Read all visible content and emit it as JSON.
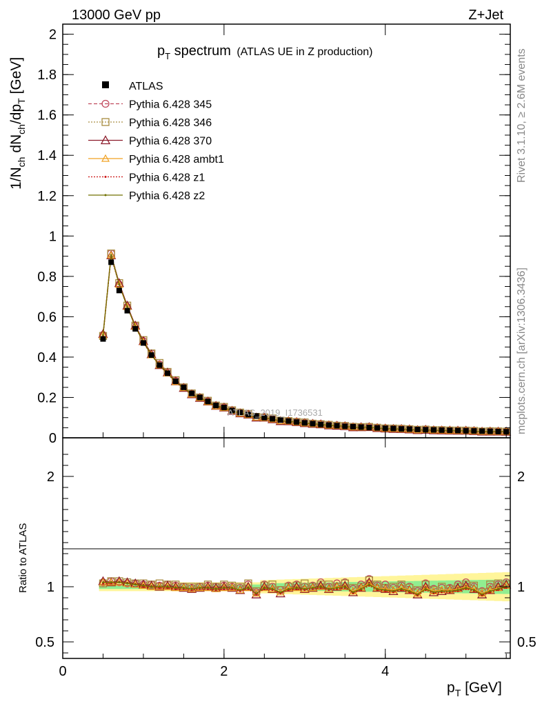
{
  "header": {
    "left": "13000 GeV pp",
    "right": "Z+Jet"
  },
  "side_text": {
    "rivet": "Rivet 3.1.10, ≥ 2.6M events",
    "mcplots": "mcplots.cern.ch [arXiv:1306.3436]"
  },
  "watermark": "ATLAS_2019_I1736531",
  "colors": {
    "data": "#000000",
    "p345": "#c0485c",
    "p346": "#a88c40",
    "p370": "#8b1a2a",
    "ambt1": "#f0a020",
    "z1": "#cc1010",
    "z2": "#707000",
    "band_yellow": "#fff59a",
    "band_green": "#90ee90"
  },
  "chart_data": {
    "type": "line",
    "title": {
      "main": "p",
      "main_sub": "T",
      "main_rest": " spectrum",
      "small": "(ATLAS UE in Z production)"
    },
    "ylabel_top": "1/N_ch dN_ch/dp_T [GeV]",
    "ylabel_ratio": "Ratio to ATLAS",
    "xlabel": "p_T [GeV]",
    "xlim": [
      0,
      5.55
    ],
    "ylim_top": [
      0,
      2.05
    ],
    "ylim_ratio": [
      0.35,
      2.35
    ],
    "x_ticks": [
      "0",
      "2",
      "4"
    ],
    "y_ticks_top": [
      "0",
      "0.2",
      "0.4",
      "0.6",
      "0.8",
      "1",
      "1.2",
      "1.4",
      "1.6",
      "1.8",
      "2"
    ],
    "y_ticks_ratio": [
      "0.5",
      "1",
      "2"
    ],
    "legend": {
      "position": "top-left",
      "entries": [
        {
          "label": "ATLAS"
        },
        {
          "label": "Pythia 6.428 345"
        },
        {
          "label": "Pythia 6.428 346"
        },
        {
          "label": "Pythia 6.428 370"
        },
        {
          "label": "Pythia 6.428 ambt1"
        },
        {
          "label": "Pythia 6.428 z1"
        },
        {
          "label": "Pythia 6.428 z2"
        }
      ]
    },
    "x": [
      0.5,
      0.6,
      0.7,
      0.8,
      0.9,
      1.0,
      1.1,
      1.2,
      1.3,
      1.4,
      1.5,
      1.6,
      1.7,
      1.8,
      1.9,
      2.0,
      2.1,
      2.2,
      2.3,
      2.4,
      2.5,
      2.6,
      2.7,
      2.8,
      2.9,
      3.0,
      3.1,
      3.2,
      3.3,
      3.4,
      3.5,
      3.6,
      3.7,
      3.8,
      3.9,
      4.0,
      4.1,
      4.2,
      4.3,
      4.4,
      4.5,
      4.6,
      4.7,
      4.8,
      4.9,
      5.0,
      5.1,
      5.2,
      5.3,
      5.4,
      5.5
    ],
    "data_values": [
      0.49,
      0.87,
      0.73,
      0.63,
      0.54,
      0.47,
      0.41,
      0.36,
      0.32,
      0.28,
      0.25,
      0.22,
      0.2,
      0.18,
      0.16,
      0.15,
      0.135,
      0.125,
      0.115,
      0.108,
      0.1,
      0.094,
      0.088,
      0.083,
      0.078,
      0.074,
      0.07,
      0.066,
      0.063,
      0.06,
      0.057,
      0.055,
      0.053,
      0.051,
      0.049,
      0.047,
      0.046,
      0.044,
      0.043,
      0.041,
      0.04,
      0.039,
      0.038,
      0.037,
      0.036,
      0.035,
      0.034,
      0.033,
      0.032,
      0.031,
      0.03
    ],
    "ratio_series": [
      {
        "name": "Pythia 6.428 345",
        "key": "p345",
        "values": [
          1.04,
          1.05,
          1.04,
          1.03,
          1.03,
          1.02,
          1.02,
          1.01,
          1.02,
          1.01,
          1.0,
          0.99,
          1.0,
          1.01,
          1.0,
          1.01,
          1.0,
          0.99,
          1.02,
          0.95,
          1.02,
          1.0,
          0.97,
          1.01,
          1.02,
          1.0,
          1.01,
          1.04,
          1.0,
          1.03,
          1.04,
          0.98,
          1.02,
          1.07,
          1.01,
          1.02,
          0.99,
          1.01,
          1.0,
          0.96,
          1.03,
          0.98,
          0.99,
          0.99,
          1.02,
          1.04,
          1.0,
          0.96,
          1.0,
          1.02,
          1.04
        ]
      },
      {
        "name": "Pythia 6.428 346",
        "key": "p346",
        "values": [
          1.03,
          1.05,
          1.05,
          1.04,
          1.03,
          1.03,
          1.02,
          1.03,
          1.02,
          1.02,
          1.0,
          1.0,
          1.0,
          1.02,
          1.0,
          1.02,
          1.01,
          1.0,
          1.03,
          0.96,
          1.01,
          1.02,
          0.97,
          1.0,
          1.01,
          1.03,
          1.0,
          1.02,
          1.02,
          1.0,
          1.03,
          0.99,
          1.0,
          1.06,
          1.02,
          0.99,
          1.0,
          1.02,
          0.99,
          0.97,
          1.02,
          0.97,
          1.0,
          0.98,
          1.0,
          1.02,
          1.01,
          0.95,
          1.02,
          1.03,
          1.02
        ]
      },
      {
        "name": "Pythia 6.428 370",
        "key": "p370",
        "values": [
          1.05,
          1.04,
          1.05,
          1.04,
          1.03,
          1.02,
          1.01,
          1.0,
          1.01,
          1.0,
          0.99,
          0.98,
          0.99,
          1.0,
          0.99,
          1.0,
          0.99,
          0.97,
          1.0,
          0.93,
          1.0,
          0.98,
          0.94,
          0.99,
          1.0,
          0.98,
          0.99,
          1.01,
          0.98,
          1.0,
          1.01,
          0.95,
          0.99,
          1.04,
          0.99,
          0.98,
          0.96,
          0.99,
          0.97,
          0.93,
          1.0,
          0.95,
          0.96,
          0.97,
          0.99,
          1.01,
          0.98,
          0.93,
          0.97,
          1.0,
          1.02
        ]
      },
      {
        "name": "Pythia 6.428 ambt1",
        "key": "ambt1",
        "values": [
          1.04,
          1.04,
          1.04,
          1.03,
          1.02,
          1.01,
          1.0,
          1.0,
          1.0,
          0.99,
          0.99,
          0.98,
          0.99,
          0.99,
          0.98,
          0.99,
          0.99,
          0.97,
          0.99,
          0.94,
          0.99,
          0.98,
          0.95,
          0.99,
          0.99,
          0.98,
          0.99,
          1.0,
          0.98,
          1.0,
          1.0,
          0.96,
          0.99,
          1.03,
          0.99,
          0.98,
          0.97,
          0.99,
          0.97,
          0.94,
          0.99,
          0.96,
          0.97,
          0.97,
          0.98,
          1.0,
          0.98,
          0.94,
          0.97,
          0.99,
          1.01
        ]
      },
      {
        "name": "Pythia 6.428 z1",
        "key": "z1",
        "values": [
          1.03,
          1.03,
          1.04,
          1.03,
          1.02,
          1.0,
          1.0,
          0.99,
          0.99,
          0.98,
          0.98,
          0.97,
          0.98,
          0.98,
          0.97,
          0.98,
          0.98,
          0.96,
          0.98,
          0.93,
          0.98,
          0.97,
          0.94,
          0.97,
          0.98,
          0.97,
          0.98,
          0.99,
          0.97,
          0.98,
          0.99,
          0.94,
          0.97,
          1.01,
          0.97,
          0.96,
          0.95,
          0.97,
          0.95,
          0.92,
          0.97,
          0.94,
          0.95,
          0.95,
          0.96,
          0.98,
          0.96,
          0.92,
          0.95,
          0.97,
          0.99
        ]
      },
      {
        "name": "Pythia 6.428 z2",
        "key": "z2",
        "values": [
          1.04,
          1.04,
          1.04,
          1.03,
          1.02,
          1.01,
          1.0,
          1.0,
          1.0,
          0.99,
          0.99,
          0.98,
          0.99,
          0.99,
          0.98,
          0.99,
          0.99,
          0.97,
          0.99,
          0.94,
          0.99,
          0.98,
          0.95,
          0.98,
          0.99,
          0.98,
          0.99,
          1.0,
          0.98,
          0.99,
          1.0,
          0.95,
          0.98,
          1.02,
          0.98,
          0.97,
          0.96,
          0.98,
          0.96,
          0.93,
          0.98,
          0.95,
          0.96,
          0.96,
          0.97,
          0.99,
          0.97,
          0.93,
          0.96,
          0.98,
          1.0
        ]
      }
    ]
  }
}
